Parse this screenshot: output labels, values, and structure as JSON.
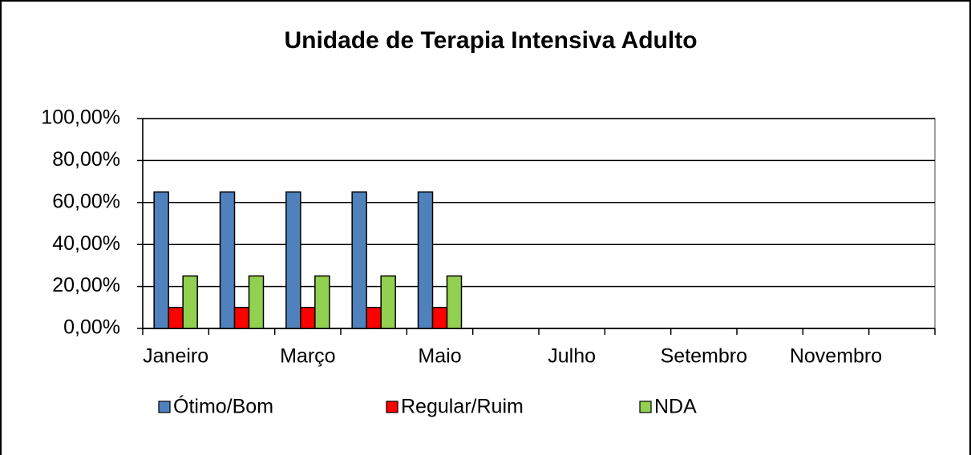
{
  "chart_data": {
    "type": "bar",
    "title": "Unidade de Terapia Intensiva Adulto",
    "categories": [
      "Janeiro",
      null,
      "Março",
      null,
      "Maio",
      null,
      "Julho",
      null,
      "Setembro",
      null,
      "Novembro",
      null
    ],
    "series": [
      {
        "name": "Ótimo/Bom",
        "color": "#4f81bd",
        "values": [
          65,
          65,
          65,
          65,
          65,
          null,
          null,
          null,
          null,
          null,
          null,
          null
        ]
      },
      {
        "name": "Regular/Ruim",
        "color": "#ff0000",
        "values": [
          10,
          10,
          10,
          10,
          10,
          null,
          null,
          null,
          null,
          null,
          null,
          null
        ]
      },
      {
        "name": "NDA",
        "color": "#92d050",
        "values": [
          25,
          25,
          25,
          25,
          25,
          null,
          null,
          null,
          null,
          null,
          null,
          null
        ]
      }
    ],
    "ylim": [
      0,
      100
    ],
    "yticks": [
      {
        "value": 0,
        "label": "0,00%"
      },
      {
        "value": 20,
        "label": "20,00%"
      },
      {
        "value": 40,
        "label": "40,00%"
      },
      {
        "value": 60,
        "label": "60,00%"
      },
      {
        "value": 80,
        "label": "80,00%"
      },
      {
        "value": 100,
        "label": "100,00%"
      }
    ],
    "grid": true,
    "legend": "bottom"
  }
}
